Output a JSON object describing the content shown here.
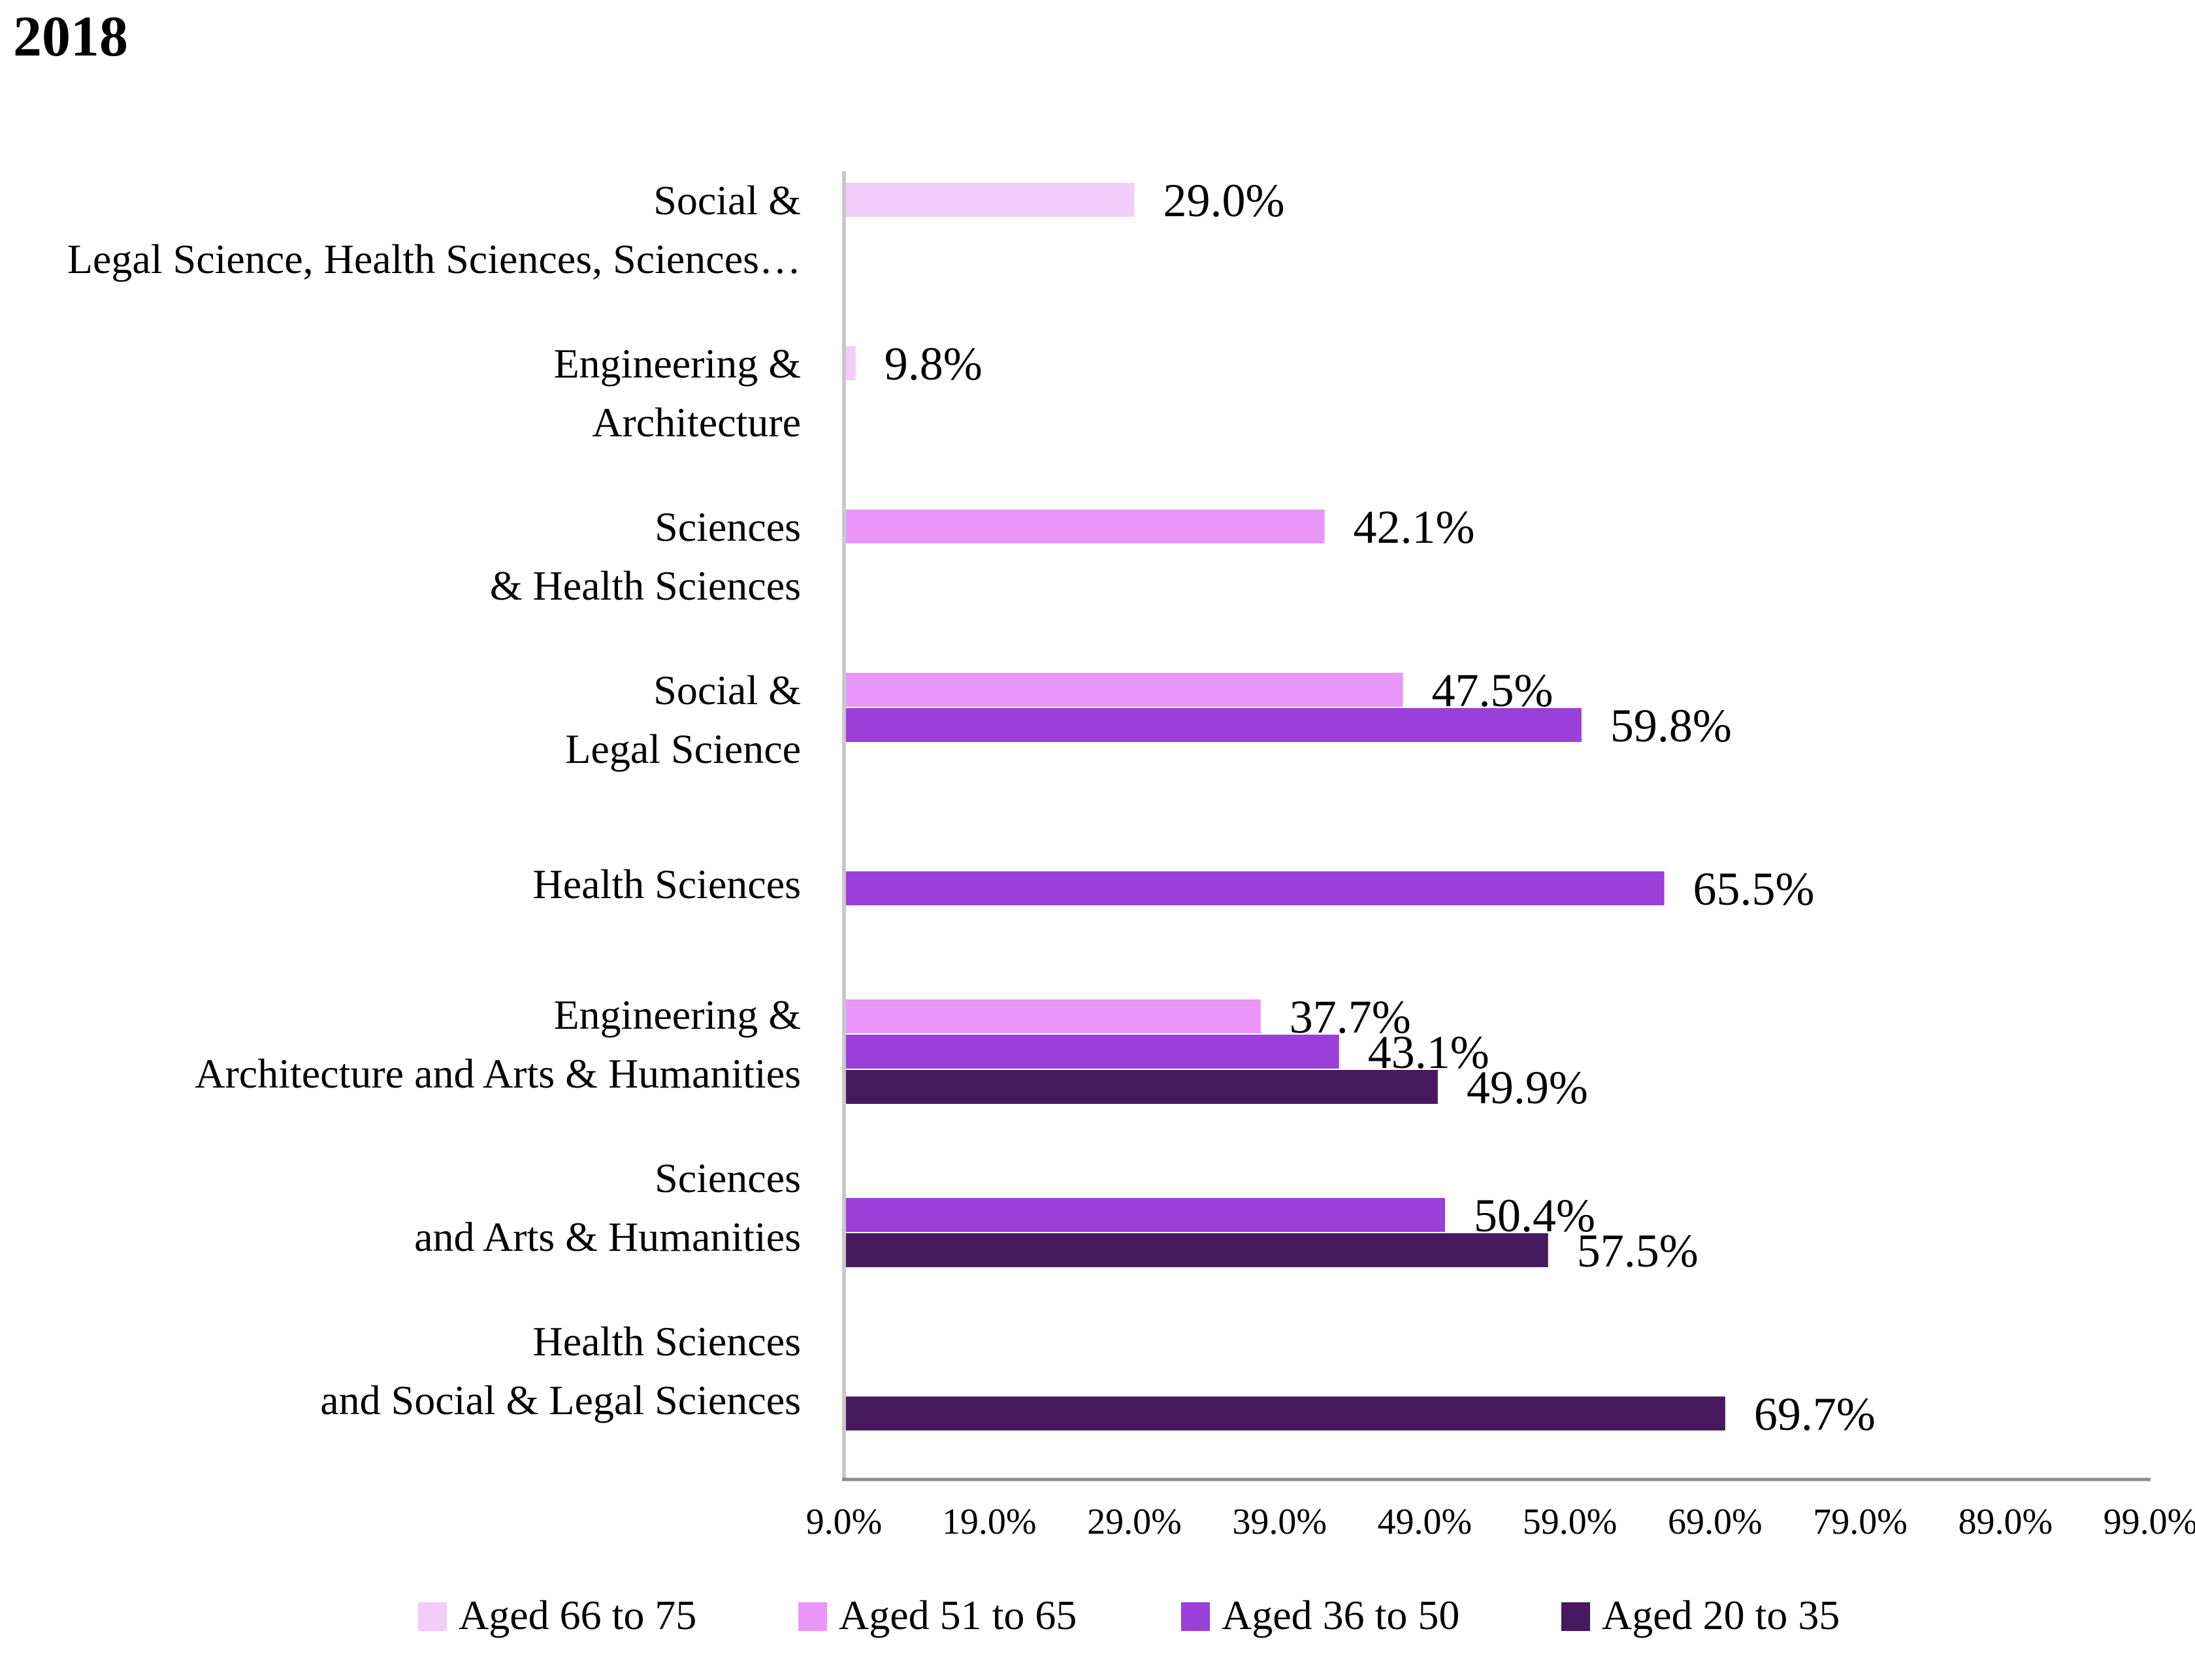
{
  "chart_data": {
    "type": "bar",
    "orientation": "horizontal",
    "title": "2018",
    "xlim": [
      9.0,
      99.0
    ],
    "xticks": [
      "9.0%",
      "19.0%",
      "29.0%",
      "39.0%",
      "49.0%",
      "59.0%",
      "69.0%",
      "79.0%",
      "89.0%",
      "99.0%"
    ],
    "grid": false,
    "legend_position": "bottom",
    "categories": [
      [
        "Social &",
        "Legal Science, Health Sciences, Sciences…"
      ],
      [
        "Engineering &",
        "Architecture"
      ],
      [
        "Sciences",
        "& Health Sciences"
      ],
      [
        "Social &",
        "Legal Science"
      ],
      [
        "Health Sciences"
      ],
      [
        "Engineering &",
        "Architecture and Arts & Humanities"
      ],
      [
        "Sciences",
        "and Arts & Humanities"
      ],
      [
        "Health Sciences",
        "and Social & Legal Sciences"
      ]
    ],
    "series": [
      {
        "name": "Aged 66 to 75",
        "color": "#f2ccfa",
        "values": [
          29.0,
          9.8,
          null,
          null,
          null,
          null,
          null,
          null
        ],
        "labels": [
          "29.0%",
          "9.8%",
          null,
          null,
          null,
          null,
          null,
          null
        ]
      },
      {
        "name": "Aged 51 to 65",
        "color": "#e996f8",
        "values": [
          null,
          null,
          42.1,
          47.5,
          null,
          37.7,
          null,
          null
        ],
        "labels": [
          null,
          null,
          "42.1%",
          "47.5%",
          null,
          "37.7%",
          null,
          null
        ]
      },
      {
        "name": "Aged 36 to 50",
        "color": "#9a3fd9",
        "values": [
          null,
          null,
          null,
          59.8,
          65.5,
          43.1,
          50.4,
          null
        ],
        "labels": [
          null,
          null,
          null,
          "59.8%",
          "65.5%",
          "43.1%",
          "50.4%",
          null
        ]
      },
      {
        "name": "Aged 20 to 35",
        "color": "#471a5f",
        "values": [
          null,
          null,
          null,
          null,
          null,
          49.9,
          57.5,
          69.7
        ],
        "labels": [
          null,
          null,
          null,
          null,
          null,
          "49.9%",
          "57.5%",
          "69.7%"
        ]
      }
    ]
  }
}
